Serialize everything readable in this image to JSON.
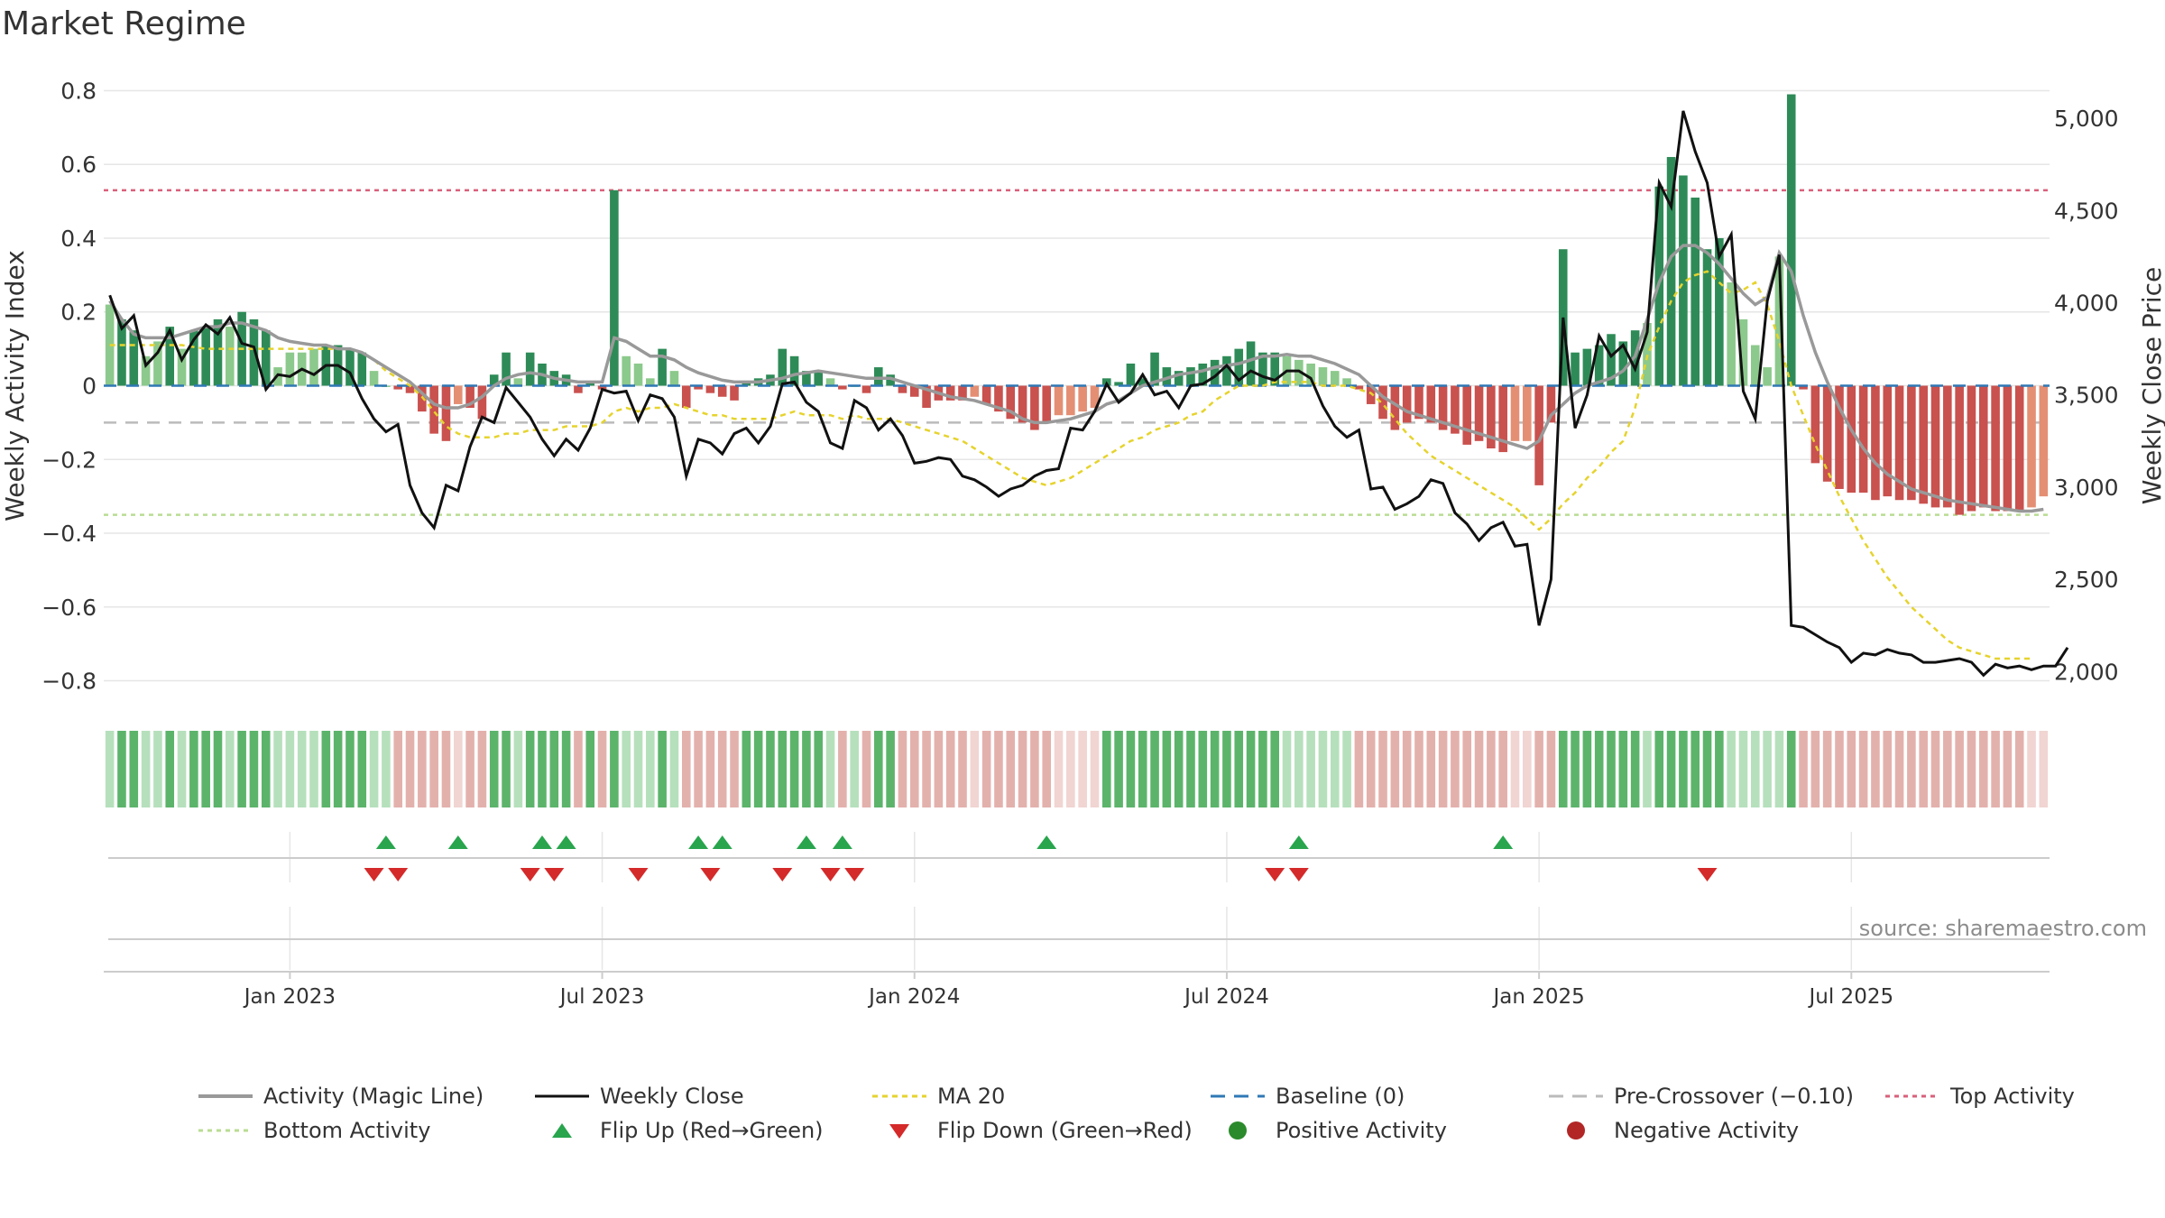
{
  "chart_data": {
    "type": "bar",
    "title": "Market Regime",
    "ylabel": "Weekly Activity Index",
    "y2label": "Weekly Close Price",
    "ylim": [
      -0.85,
      0.85
    ],
    "y2lim": [
      1850,
      5250
    ],
    "yticks": [
      "0.8",
      "0.6",
      "0.4",
      "0.2",
      "0",
      "−0.2",
      "−0.4",
      "−0.6",
      "−0.8"
    ],
    "yticks_values": [
      0.8,
      0.6,
      0.4,
      0.2,
      0,
      -0.2,
      -0.4,
      -0.6,
      -0.8
    ],
    "y2ticks": [
      "5,000",
      "4,500",
      "4,000",
      "3,500",
      "3,000",
      "2,500",
      "2,000"
    ],
    "y2ticks_values": [
      5000,
      4500,
      4000,
      3500,
      3000,
      2500,
      2000
    ],
    "xticks": [
      "Jan 2023",
      "Jul 2023",
      "Jan 2024",
      "Jul 2024",
      "Jan 2025",
      "Jul 2025"
    ],
    "xticks_week_index": [
      15,
      41,
      67,
      93,
      119,
      145
    ],
    "first_week": "2022-09-29",
    "grid": true,
    "legend_position": "bottom",
    "source": "source: sharemaestro.com",
    "reference_lines": {
      "baseline": 0,
      "pre_crossover": -0.1,
      "top_activity": 0.53,
      "bottom_activity": -0.35
    },
    "activity": [
      0.22,
      0.18,
      0.15,
      0.08,
      0.12,
      0.16,
      0.1,
      0.15,
      0.16,
      0.18,
      0.16,
      0.2,
      0.18,
      0.15,
      0.05,
      0.09,
      0.09,
      0.1,
      0.11,
      0.11,
      0.1,
      0.09,
      0.04,
      0.0,
      -0.01,
      -0.02,
      -0.07,
      -0.13,
      -0.15,
      -0.05,
      -0.06,
      -0.09,
      0.03,
      0.09,
      0.02,
      0.09,
      0.06,
      0.04,
      0.03,
      -0.02,
      0.01,
      -0.01,
      0.53,
      0.08,
      0.06,
      0.02,
      0.1,
      0.04,
      -0.06,
      -0.01,
      -0.02,
      -0.03,
      -0.04,
      0.01,
      0.02,
      0.03,
      0.1,
      0.08,
      0.04,
      0.04,
      0.02,
      -0.01,
      0.0,
      -0.02,
      0.05,
      0.03,
      -0.02,
      -0.03,
      -0.06,
      -0.04,
      -0.04,
      -0.04,
      -0.03,
      -0.05,
      -0.07,
      -0.09,
      -0.1,
      -0.12,
      -0.1,
      -0.08,
      -0.08,
      -0.07,
      -0.06,
      0.02,
      0.01,
      0.06,
      0.02,
      0.09,
      0.05,
      0.04,
      0.05,
      0.06,
      0.07,
      0.08,
      0.1,
      0.12,
      0.09,
      0.09,
      0.08,
      0.07,
      0.06,
      0.05,
      0.04,
      0.02,
      -0.01,
      -0.05,
      -0.09,
      -0.12,
      -0.1,
      -0.09,
      -0.1,
      -0.12,
      -0.13,
      -0.16,
      -0.15,
      -0.17,
      -0.18,
      -0.15,
      -0.15,
      -0.27,
      -0.1,
      0.37,
      0.09,
      0.1,
      0.11,
      0.14,
      0.12,
      0.15,
      0.17,
      0.54,
      0.62,
      0.57,
      0.51,
      0.37,
      0.4,
      0.28,
      0.18,
      0.11,
      0.05,
      0.35,
      0.79,
      -0.01,
      -0.21,
      -0.26,
      -0.28,
      -0.29,
      -0.29,
      -0.31,
      -0.3,
      -0.31,
      -0.31,
      -0.32,
      -0.33,
      -0.33,
      -0.35,
      -0.34,
      -0.33,
      -0.34,
      -0.34,
      -0.34,
      -0.33,
      -0.3
    ],
    "magic_line": [
      0.23,
      0.18,
      0.14,
      0.13,
      0.13,
      0.13,
      0.14,
      0.15,
      0.16,
      0.16,
      0.17,
      0.17,
      0.16,
      0.15,
      0.13,
      0.12,
      0.115,
      0.11,
      0.11,
      0.1,
      0.1,
      0.09,
      0.07,
      0.05,
      0.03,
      0.01,
      -0.02,
      -0.05,
      -0.06,
      -0.06,
      -0.05,
      -0.03,
      0.0,
      0.02,
      0.03,
      0.035,
      0.03,
      0.02,
      0.015,
      0.01,
      0.01,
      0.01,
      0.13,
      0.12,
      0.1,
      0.08,
      0.08,
      0.07,
      0.05,
      0.035,
      0.025,
      0.015,
      0.01,
      0.01,
      0.01,
      0.015,
      0.02,
      0.03,
      0.035,
      0.04,
      0.035,
      0.03,
      0.025,
      0.02,
      0.02,
      0.02,
      0.01,
      0.0,
      -0.01,
      -0.02,
      -0.03,
      -0.035,
      -0.04,
      -0.05,
      -0.06,
      -0.07,
      -0.09,
      -0.1,
      -0.1,
      -0.095,
      -0.09,
      -0.08,
      -0.07,
      -0.05,
      -0.04,
      -0.02,
      0.0,
      0.01,
      0.02,
      0.03,
      0.035,
      0.04,
      0.05,
      0.055,
      0.06,
      0.07,
      0.08,
      0.08,
      0.085,
      0.08,
      0.08,
      0.07,
      0.06,
      0.045,
      0.03,
      0.0,
      -0.03,
      -0.05,
      -0.07,
      -0.08,
      -0.09,
      -0.1,
      -0.11,
      -0.12,
      -0.13,
      -0.14,
      -0.15,
      -0.16,
      -0.17,
      -0.15,
      -0.08,
      -0.05,
      -0.02,
      0.0,
      0.01,
      0.02,
      0.04,
      0.08,
      0.18,
      0.28,
      0.35,
      0.38,
      0.38,
      0.36,
      0.33,
      0.29,
      0.25,
      0.22,
      0.24,
      0.36,
      0.31,
      0.19,
      0.09,
      0.01,
      -0.06,
      -0.12,
      -0.17,
      -0.21,
      -0.24,
      -0.26,
      -0.28,
      -0.29,
      -0.3,
      -0.31,
      -0.315,
      -0.32,
      -0.325,
      -0.33,
      -0.335,
      -0.34,
      -0.34,
      -0.335
    ],
    "ma20": [
      0.11,
      0.11,
      0.11,
      0.11,
      0.11,
      0.11,
      0.11,
      0.105,
      0.1,
      0.1,
      0.1,
      0.1,
      0.1,
      0.1,
      0.1,
      0.1,
      0.1,
      0.1,
      0.1,
      0.1,
      0.1,
      0.09,
      0.07,
      0.04,
      0.02,
      0.0,
      -0.03,
      -0.07,
      -0.11,
      -0.13,
      -0.14,
      -0.14,
      -0.14,
      -0.13,
      -0.13,
      -0.12,
      -0.12,
      -0.12,
      -0.11,
      -0.11,
      -0.11,
      -0.1,
      -0.07,
      -0.06,
      -0.07,
      -0.06,
      -0.06,
      -0.05,
      -0.06,
      -0.07,
      -0.08,
      -0.08,
      -0.09,
      -0.09,
      -0.09,
      -0.09,
      -0.08,
      -0.07,
      -0.08,
      -0.08,
      -0.08,
      -0.09,
      -0.08,
      -0.09,
      -0.09,
      -0.09,
      -0.1,
      -0.11,
      -0.12,
      -0.13,
      -0.14,
      -0.15,
      -0.17,
      -0.19,
      -0.21,
      -0.23,
      -0.25,
      -0.26,
      -0.27,
      -0.26,
      -0.25,
      -0.23,
      -0.21,
      -0.19,
      -0.17,
      -0.15,
      -0.14,
      -0.12,
      -0.11,
      -0.1,
      -0.08,
      -0.07,
      -0.04,
      -0.02,
      0.0,
      0.0,
      0.0,
      0.01,
      0.01,
      0.01,
      0.01,
      0.0,
      0.0,
      0.0,
      -0.01,
      -0.02,
      -0.05,
      -0.09,
      -0.13,
      -0.16,
      -0.19,
      -0.21,
      -0.23,
      -0.25,
      -0.27,
      -0.29,
      -0.31,
      -0.33,
      -0.36,
      -0.39,
      -0.36,
      -0.32,
      -0.29,
      -0.25,
      -0.22,
      -0.18,
      -0.15,
      -0.06,
      0.08,
      0.16,
      0.23,
      0.28,
      0.3,
      0.31,
      0.28,
      0.25,
      0.26,
      0.28,
      0.22,
      0.12,
      0.0,
      -0.08,
      -0.16,
      -0.23,
      -0.3,
      -0.36,
      -0.42,
      -0.47,
      -0.52,
      -0.56,
      -0.6,
      -0.63,
      -0.66,
      -0.69,
      -0.71,
      -0.72,
      -0.73,
      -0.74,
      -0.74,
      -0.74,
      -0.74
    ],
    "weekly_close": [
      4040,
      3860,
      3930,
      3660,
      3730,
      3850,
      3690,
      3800,
      3880,
      3830,
      3920,
      3780,
      3760,
      3530,
      3610,
      3600,
      3640,
      3610,
      3660,
      3660,
      3620,
      3480,
      3370,
      3300,
      3340,
      3010,
      2860,
      2780,
      3010,
      2980,
      3220,
      3380,
      3350,
      3540,
      3460,
      3380,
      3260,
      3170,
      3260,
      3200,
      3320,
      3530,
      3510,
      3520,
      3360,
      3500,
      3480,
      3380,
      3060,
      3260,
      3240,
      3180,
      3290,
      3320,
      3240,
      3330,
      3560,
      3570,
      3460,
      3410,
      3240,
      3210,
      3470,
      3430,
      3310,
      3370,
      3280,
      3130,
      3140,
      3160,
      3150,
      3060,
      3040,
      3000,
      2950,
      2990,
      3010,
      3060,
      3090,
      3100,
      3320,
      3310,
      3410,
      3560,
      3460,
      3510,
      3610,
      3500,
      3520,
      3430,
      3550,
      3560,
      3600,
      3660,
      3580,
      3630,
      3600,
      3580,
      3630,
      3630,
      3590,
      3440,
      3330,
      3270,
      3310,
      2990,
      3000,
      2880,
      2910,
      2950,
      3040,
      3020,
      2860,
      2800,
      2710,
      2780,
      2810,
      2680,
      2690,
      2250,
      2500,
      3920,
      3320,
      3500,
      3820,
      3710,
      3770,
      3640,
      3840,
      4650,
      4520,
      5040,
      4820,
      4650,
      4250,
      4370,
      3520,
      3370,
      4010,
      4260,
      2250,
      2240,
      2200,
      2160,
      2130,
      2050,
      2100,
      2090,
      2120,
      2100,
      2090,
      2050,
      2050,
      2060,
      2070,
      2050,
      1980,
      2040,
      2020,
      2030,
      2010,
      2030,
      2030,
      2130
    ],
    "regime_colors": {
      "strong_positive": "#2e8b57",
      "positive": "#8cc98c",
      "negative": "#c9514e",
      "weak_negative": "#e48f74"
    },
    "ribbon_colors": {
      "strong_positive": "#5cb46b",
      "positive": "#b6e0bc",
      "negative": "#e3b1ac",
      "weak_negative": "#f0d5d2"
    },
    "flip_up_weeks": [
      23,
      29,
      36,
      38,
      49,
      51,
      58,
      61,
      78,
      99,
      116
    ],
    "flip_down_weeks": [
      22,
      24,
      35,
      37,
      44,
      50,
      56,
      60,
      62,
      97,
      99,
      133
    ],
    "line_colors": {
      "magic_line": "#999999",
      "weekly_close": "#111111",
      "ma20": "#e6d32e",
      "baseline": "#2f78b5",
      "pre_crossover": "#bbbbbb",
      "top_activity": "#d9607b",
      "bottom_activity": "#b9dc92",
      "flip_up": "#28a54d",
      "flip_down": "#d42a2a",
      "positive_activity": "#2b8a2b",
      "negative_activity": "#b22626"
    },
    "legend": [
      {
        "label": "Activity (Magic Line)",
        "key": "magic"
      },
      {
        "label": "Weekly Close",
        "key": "close"
      },
      {
        "label": "MA 20",
        "key": "ma20"
      },
      {
        "label": "Baseline (0)",
        "key": "baseline"
      },
      {
        "label": "Pre-Crossover (−0.10)",
        "key": "pre"
      },
      {
        "label": "Top Activity",
        "key": "top"
      },
      {
        "label": "Bottom Activity",
        "key": "bottom"
      },
      {
        "label": "Flip Up (Red→Green)",
        "key": "flipup"
      },
      {
        "label": "Flip Down (Green→Red)",
        "key": "flipdown"
      },
      {
        "label": "Positive Activity",
        "key": "posdot"
      },
      {
        "label": "Negative Activity",
        "key": "negdot"
      }
    ]
  }
}
